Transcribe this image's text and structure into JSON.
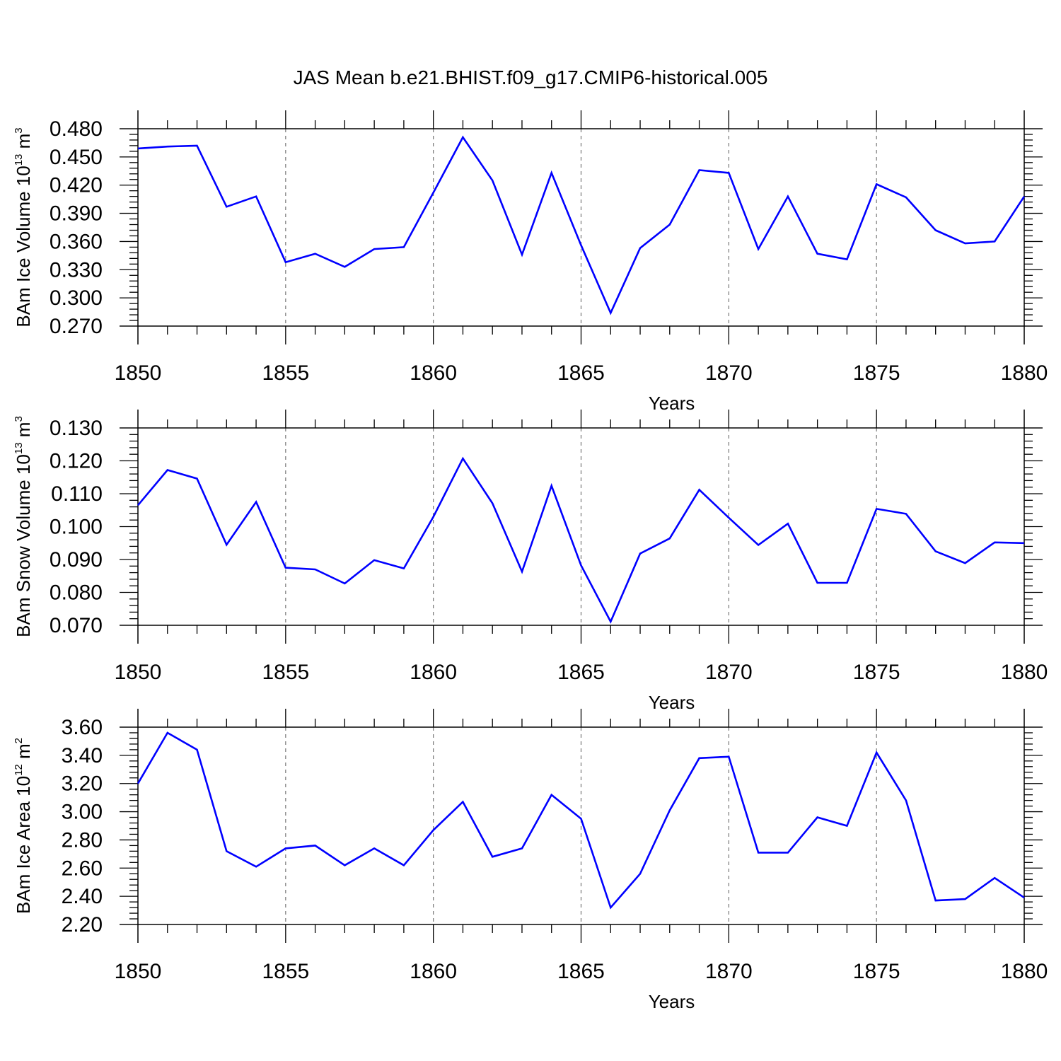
{
  "figure": {
    "title": "JAS Mean b.e21.BHIST.f09_g17.CMIP6-historical.005"
  },
  "colors": {
    "series": "#0000ff",
    "grid": "#777777",
    "axes": "#000000"
  },
  "chart_data": [
    {
      "type": "line",
      "title": "JAS Mean b.e21.BHIST.f09_g17.CMIP6-historical.005",
      "xlabel": "Years",
      "ylabel": {
        "base": "BAm Ice Volume 10",
        "sup1": "13",
        "mid": " m",
        "sup2": "3"
      },
      "xlim": [
        1850,
        1880
      ],
      "ylim": [
        0.27,
        0.48
      ],
      "xticks": [
        1850,
        1855,
        1860,
        1865,
        1870,
        1875,
        1880
      ],
      "xtick_labels": [
        "1850",
        "1855",
        "1860",
        "1865",
        "1870",
        "1875",
        "1880"
      ],
      "yticks": [
        0.27,
        0.3,
        0.33,
        0.36,
        0.39,
        0.42,
        0.45,
        0.48
      ],
      "ytick_labels": [
        "0.270",
        "0.300",
        "0.330",
        "0.360",
        "0.390",
        "0.420",
        "0.450",
        "0.480"
      ],
      "grid": "vertical dashed at major x ticks",
      "x": [
        1850,
        1851,
        1852,
        1853,
        1854,
        1855,
        1856,
        1857,
        1858,
        1859,
        1860,
        1861,
        1862,
        1863,
        1864,
        1865,
        1866,
        1867,
        1868,
        1869,
        1870,
        1871,
        1872,
        1873,
        1874,
        1875,
        1876,
        1877,
        1878,
        1879,
        1880
      ],
      "y": [
        0.459,
        0.461,
        0.462,
        0.397,
        0.408,
        0.338,
        0.347,
        0.333,
        0.352,
        0.354,
        0.412,
        0.471,
        0.425,
        0.346,
        0.433,
        0.356,
        0.284,
        0.353,
        0.378,
        0.436,
        0.433,
        0.352,
        0.408,
        0.347,
        0.341,
        0.421,
        0.407,
        0.372,
        0.358,
        0.36,
        0.408
      ]
    },
    {
      "type": "line",
      "xlabel": "Years",
      "ylabel": {
        "base": "BAm Snow Volume 10",
        "sup1": "13",
        "mid": " m",
        "sup2": "3"
      },
      "xlim": [
        1850,
        1880
      ],
      "ylim": [
        0.07,
        0.13
      ],
      "xticks": [
        1850,
        1855,
        1860,
        1865,
        1870,
        1875,
        1880
      ],
      "xtick_labels": [
        "1850",
        "1855",
        "1860",
        "1865",
        "1870",
        "1875",
        "1880"
      ],
      "yticks": [
        0.07,
        0.08,
        0.09,
        0.1,
        0.11,
        0.12,
        0.13
      ],
      "ytick_labels": [
        "0.070",
        "0.080",
        "0.090",
        "0.100",
        "0.110",
        "0.120",
        "0.130"
      ],
      "grid": "vertical dashed at major x ticks",
      "x": [
        1850,
        1851,
        1852,
        1853,
        1854,
        1855,
        1856,
        1857,
        1858,
        1859,
        1860,
        1861,
        1862,
        1863,
        1864,
        1865,
        1866,
        1867,
        1868,
        1869,
        1870,
        1871,
        1872,
        1873,
        1874,
        1875,
        1876,
        1877,
        1878,
        1879,
        1880
      ],
      "y": [
        0.1065,
        0.1172,
        0.1146,
        0.0945,
        0.1075,
        0.0875,
        0.087,
        0.0827,
        0.0898,
        0.0873,
        0.103,
        0.1207,
        0.1071,
        0.0863,
        0.1124,
        0.0882,
        0.0711,
        0.0918,
        0.0964,
        0.1112,
        0.1027,
        0.0944,
        0.1009,
        0.0829,
        0.0829,
        0.1054,
        0.1039,
        0.0925,
        0.0889,
        0.0952,
        0.095
      ]
    },
    {
      "type": "line",
      "xlabel": "Years",
      "ylabel": {
        "base": "BAm Ice Area 10",
        "sup1": "12",
        "mid": " m",
        "sup2": "2"
      },
      "xlim": [
        1850,
        1880
      ],
      "ylim": [
        2.2,
        3.6
      ],
      "xticks": [
        1850,
        1855,
        1860,
        1865,
        1870,
        1875,
        1880
      ],
      "xtick_labels": [
        "1850",
        "1855",
        "1860",
        "1865",
        "1870",
        "1875",
        "1880"
      ],
      "yticks": [
        2.2,
        2.4,
        2.6,
        2.8,
        3.0,
        3.2,
        3.4,
        3.6
      ],
      "ytick_labels": [
        "2.20",
        "2.40",
        "2.60",
        "2.80",
        "3.00",
        "3.20",
        "3.40",
        "3.60"
      ],
      "grid": "vertical dashed at major x ticks",
      "x": [
        1850,
        1851,
        1852,
        1853,
        1854,
        1855,
        1856,
        1857,
        1858,
        1859,
        1860,
        1861,
        1862,
        1863,
        1864,
        1865,
        1866,
        1867,
        1868,
        1869,
        1870,
        1871,
        1872,
        1873,
        1874,
        1875,
        1876,
        1877,
        1878,
        1879,
        1880
      ],
      "y": [
        3.2,
        3.56,
        3.44,
        2.72,
        2.61,
        2.74,
        2.76,
        2.62,
        2.74,
        2.62,
        2.87,
        3.07,
        2.68,
        2.74,
        3.12,
        2.95,
        2.32,
        2.56,
        3.01,
        3.38,
        3.39,
        2.71,
        2.71,
        2.96,
        2.9,
        3.42,
        3.08,
        2.37,
        2.38,
        2.53,
        2.39
      ]
    }
  ]
}
